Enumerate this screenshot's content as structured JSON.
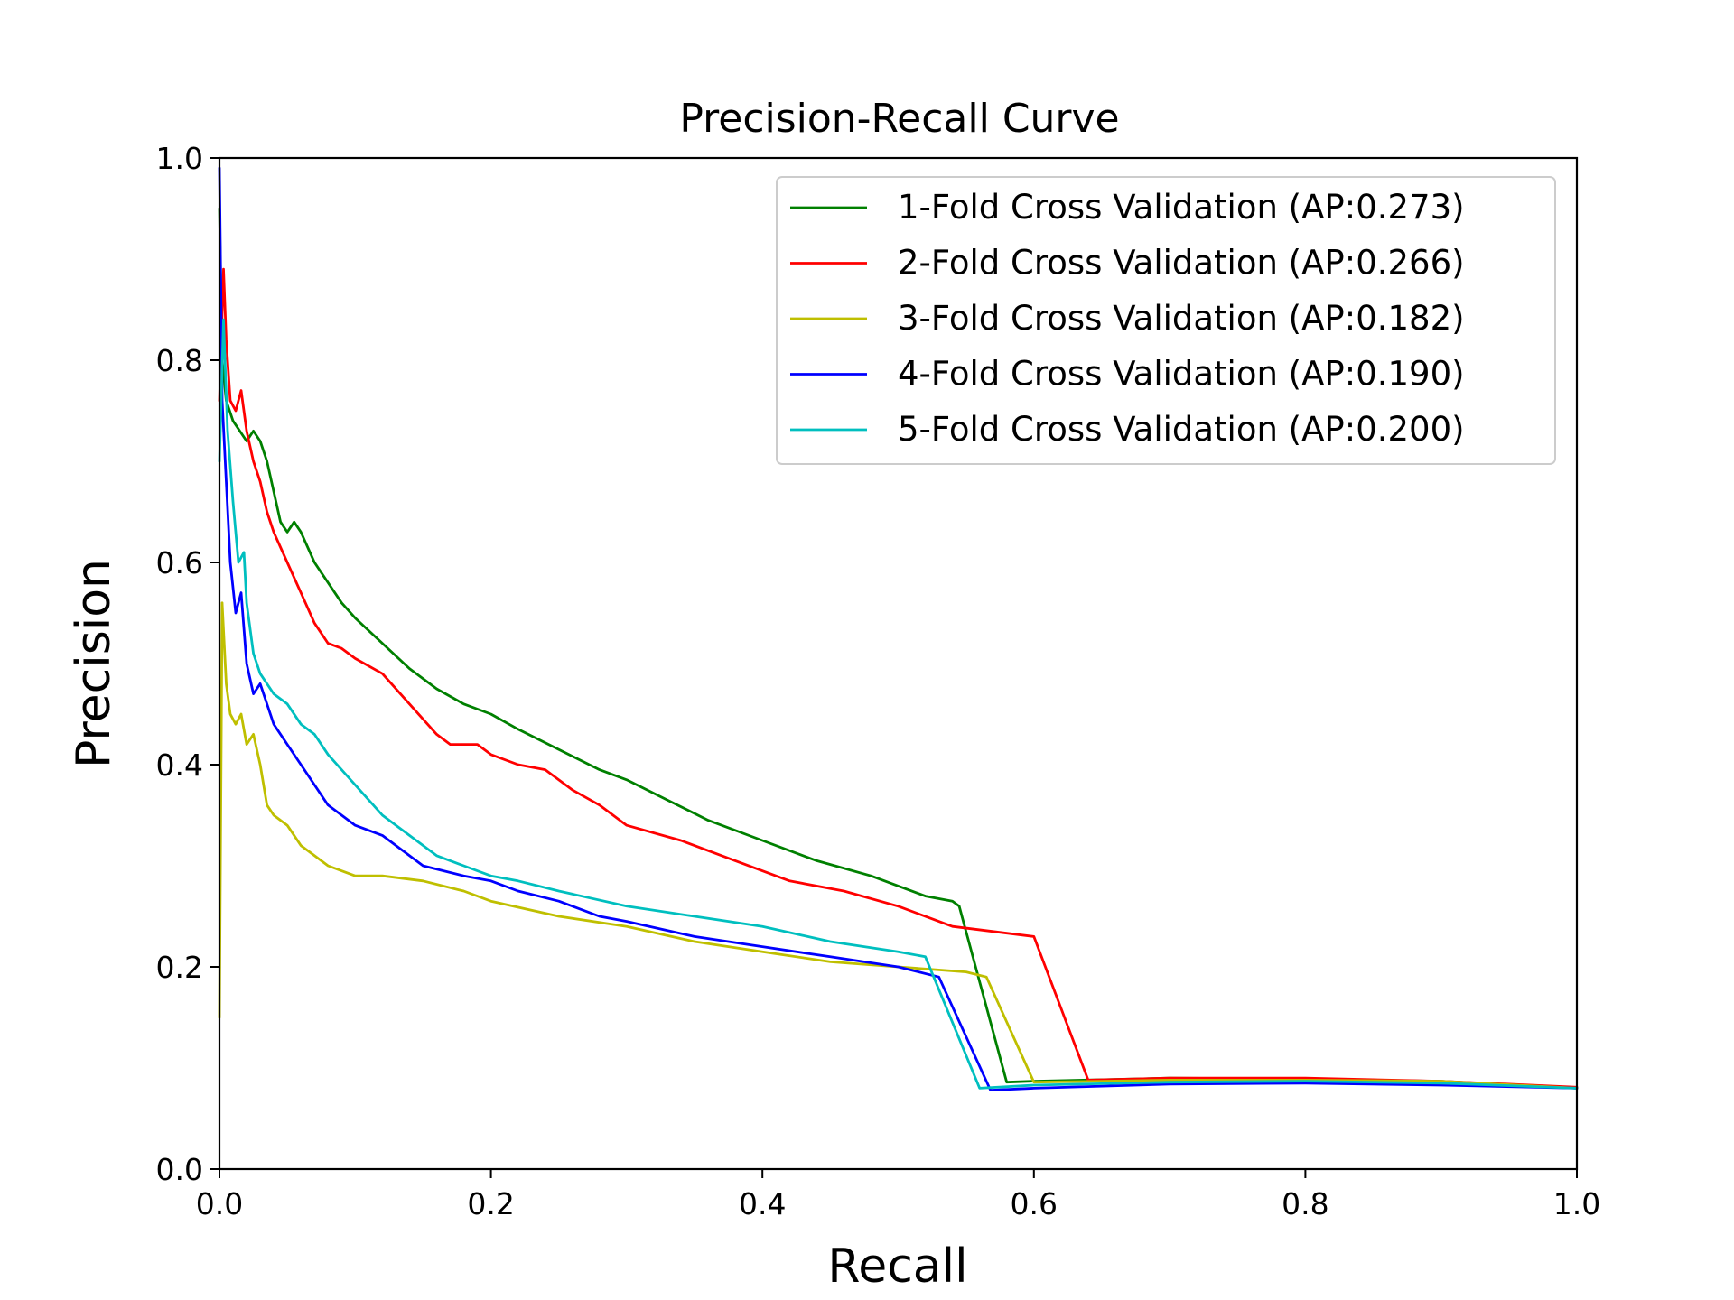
{
  "chart_data": {
    "type": "line",
    "title": "Precision-Recall Curve",
    "xlabel": "Recall",
    "ylabel": "Precision",
    "xlim": [
      0.0,
      1.0
    ],
    "ylim": [
      0.0,
      1.0
    ],
    "xticks": [
      "0.0",
      "0.2",
      "0.4",
      "0.6",
      "0.8",
      "1.0"
    ],
    "yticks": [
      "0.0",
      "0.2",
      "0.4",
      "0.6",
      "0.8",
      "1.0"
    ],
    "grid": false,
    "legend_position": "upper right",
    "series": [
      {
        "name": "1-Fold Cross Validation (AP:0.273)",
        "color": "#008000",
        "x": [
          0.0,
          0.002,
          0.005,
          0.01,
          0.015,
          0.02,
          0.025,
          0.03,
          0.035,
          0.04,
          0.045,
          0.05,
          0.055,
          0.06,
          0.07,
          0.08,
          0.09,
          0.1,
          0.12,
          0.14,
          0.16,
          0.18,
          0.2,
          0.22,
          0.25,
          0.28,
          0.3,
          0.33,
          0.36,
          0.4,
          0.44,
          0.48,
          0.52,
          0.54,
          0.545,
          0.58,
          0.6,
          0.7,
          0.8,
          0.9,
          1.0
        ],
        "y": [
          0.95,
          0.8,
          0.76,
          0.74,
          0.73,
          0.72,
          0.73,
          0.72,
          0.7,
          0.67,
          0.64,
          0.63,
          0.64,
          0.63,
          0.6,
          0.58,
          0.56,
          0.545,
          0.52,
          0.495,
          0.475,
          0.46,
          0.45,
          0.435,
          0.415,
          0.395,
          0.385,
          0.365,
          0.345,
          0.325,
          0.305,
          0.29,
          0.27,
          0.265,
          0.26,
          0.086,
          0.087,
          0.09,
          0.089,
          0.087,
          0.08
        ]
      },
      {
        "name": "2-Fold Cross Validation (AP:0.266)",
        "color": "#ff0000",
        "x": [
          0.0,
          0.003,
          0.005,
          0.008,
          0.012,
          0.016,
          0.02,
          0.025,
          0.03,
          0.035,
          0.04,
          0.05,
          0.06,
          0.07,
          0.08,
          0.09,
          0.1,
          0.12,
          0.14,
          0.16,
          0.17,
          0.19,
          0.2,
          0.22,
          0.24,
          0.26,
          0.28,
          0.3,
          0.34,
          0.38,
          0.42,
          0.46,
          0.5,
          0.54,
          0.6,
          0.64,
          0.7,
          0.8,
          0.9,
          1.0
        ],
        "y": [
          0.76,
          0.89,
          0.82,
          0.76,
          0.75,
          0.77,
          0.73,
          0.7,
          0.68,
          0.65,
          0.63,
          0.6,
          0.57,
          0.54,
          0.52,
          0.515,
          0.505,
          0.49,
          0.46,
          0.43,
          0.42,
          0.42,
          0.41,
          0.4,
          0.395,
          0.375,
          0.36,
          0.34,
          0.325,
          0.305,
          0.285,
          0.275,
          0.26,
          0.24,
          0.23,
          0.088,
          0.09,
          0.09,
          0.087,
          0.081
        ]
      },
      {
        "name": "3-Fold Cross Validation (AP:0.182)",
        "color": "#bfbf00",
        "x": [
          0.0,
          0.002,
          0.005,
          0.008,
          0.012,
          0.016,
          0.02,
          0.025,
          0.03,
          0.035,
          0.04,
          0.05,
          0.06,
          0.07,
          0.08,
          0.1,
          0.12,
          0.15,
          0.18,
          0.2,
          0.25,
          0.3,
          0.35,
          0.4,
          0.45,
          0.5,
          0.55,
          0.565,
          0.6,
          0.65,
          0.7,
          0.8,
          0.9,
          1.0
        ],
        "y": [
          0.15,
          0.56,
          0.48,
          0.45,
          0.44,
          0.45,
          0.42,
          0.43,
          0.4,
          0.36,
          0.35,
          0.34,
          0.32,
          0.31,
          0.3,
          0.29,
          0.29,
          0.285,
          0.275,
          0.265,
          0.25,
          0.24,
          0.225,
          0.215,
          0.205,
          0.2,
          0.195,
          0.19,
          0.086,
          0.087,
          0.088,
          0.088,
          0.087,
          0.08
        ]
      },
      {
        "name": "4-Fold Cross Validation (AP:0.190)",
        "color": "#0000ff",
        "x": [
          0.0,
          0.002,
          0.005,
          0.008,
          0.012,
          0.016,
          0.02,
          0.025,
          0.03,
          0.035,
          0.04,
          0.05,
          0.06,
          0.07,
          0.08,
          0.09,
          0.1,
          0.12,
          0.15,
          0.18,
          0.2,
          0.22,
          0.25,
          0.28,
          0.3,
          0.35,
          0.4,
          0.45,
          0.5,
          0.53,
          0.568,
          0.6,
          0.7,
          0.8,
          0.9,
          1.0
        ],
        "y": [
          0.99,
          0.76,
          0.68,
          0.6,
          0.55,
          0.57,
          0.5,
          0.47,
          0.48,
          0.46,
          0.44,
          0.42,
          0.4,
          0.38,
          0.36,
          0.35,
          0.34,
          0.33,
          0.3,
          0.29,
          0.285,
          0.275,
          0.265,
          0.25,
          0.245,
          0.23,
          0.22,
          0.21,
          0.2,
          0.19,
          0.078,
          0.08,
          0.084,
          0.085,
          0.083,
          0.08
        ]
      },
      {
        "name": "5-Fold Cross Validation (AP:0.200)",
        "color": "#00bfbf",
        "x": [
          0.0,
          0.003,
          0.006,
          0.01,
          0.014,
          0.018,
          0.02,
          0.025,
          0.03,
          0.035,
          0.04,
          0.05,
          0.06,
          0.07,
          0.08,
          0.1,
          0.12,
          0.14,
          0.16,
          0.18,
          0.2,
          0.22,
          0.25,
          0.3,
          0.35,
          0.4,
          0.45,
          0.5,
          0.52,
          0.56,
          0.6,
          0.7,
          0.8,
          0.9,
          1.0
        ],
        "y": [
          0.7,
          0.84,
          0.73,
          0.66,
          0.6,
          0.61,
          0.56,
          0.51,
          0.49,
          0.48,
          0.47,
          0.46,
          0.44,
          0.43,
          0.41,
          0.38,
          0.35,
          0.33,
          0.31,
          0.3,
          0.29,
          0.285,
          0.275,
          0.26,
          0.25,
          0.24,
          0.225,
          0.215,
          0.21,
          0.08,
          0.083,
          0.086,
          0.087,
          0.085,
          0.08
        ]
      }
    ]
  }
}
